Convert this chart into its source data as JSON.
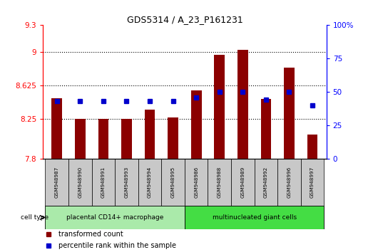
{
  "title": "GDS5314 / A_23_P161231",
  "samples": [
    "GSM948987",
    "GSM948990",
    "GSM948991",
    "GSM948993",
    "GSM948994",
    "GSM948995",
    "GSM948986",
    "GSM948988",
    "GSM948989",
    "GSM948992",
    "GSM948996",
    "GSM948997"
  ],
  "transformed_count": [
    8.48,
    8.25,
    8.25,
    8.25,
    8.35,
    8.26,
    8.57,
    8.97,
    9.02,
    8.47,
    8.82,
    8.07
  ],
  "percentile_rank": [
    43,
    43,
    43,
    43,
    43,
    43,
    46,
    50,
    50,
    44,
    50,
    40
  ],
  "group1_label": "placental CD14+ macrophage",
  "group2_label": "multinucleated giant cells",
  "group1_count": 6,
  "group2_count": 6,
  "ylim_left": [
    7.8,
    9.3
  ],
  "ylim_right": [
    0,
    100
  ],
  "yticks_left": [
    7.8,
    8.25,
    8.625,
    9.0,
    9.3
  ],
  "yticks_right": [
    0,
    25,
    50,
    75,
    100
  ],
  "ytick_labels_left": [
    "7.8",
    "8.25",
    "8.625",
    "9",
    "9.3"
  ],
  "ytick_labels_right": [
    "0",
    "25",
    "50",
    "75",
    "100%"
  ],
  "bar_color": "#8B0000",
  "dot_color": "#0000CC",
  "grid_color": "#000000",
  "bg_color": "#FFFFFF",
  "tick_bg": "#C8C8C8",
  "group1_bg": "#AAEAAA",
  "group2_bg": "#44DD44",
  "legend_red_label": "transformed count",
  "legend_blue_label": "percentile rank within the sample",
  "grid_hlines": [
    8.25,
    8.625,
    9.0
  ]
}
